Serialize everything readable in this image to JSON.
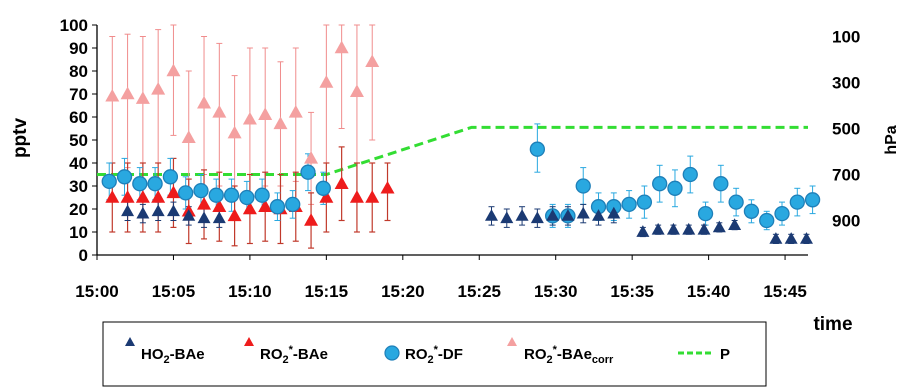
{
  "chart_data": {
    "type": "scatter",
    "xlabel": "time",
    "ylabel_left": "pptv",
    "ylabel_right": "hPa",
    "xlim": [
      0,
      46.5
    ],
    "x_ticks": [
      "15:00",
      "15:05",
      "15:10",
      "15:15",
      "15:20",
      "15:25",
      "15:30",
      "15:35",
      "15:40",
      "15:45"
    ],
    "y_left": {
      "lim": [
        0,
        100
      ],
      "ticks": [
        "0",
        "10",
        "20",
        "30",
        "40",
        "50",
        "60",
        "70",
        "80",
        "90",
        "100"
      ]
    },
    "y_right": {
      "lim": [
        1050,
        50
      ],
      "ticks": [
        "100",
        "300",
        "500",
        "700",
        "900"
      ],
      "inverted": true
    },
    "grid": false,
    "legend": {
      "position": "bottom",
      "entries": [
        {
          "key": "ho2",
          "main": "HO",
          "sub": "2",
          "rest": "-BAe"
        },
        {
          "key": "ro2bae",
          "main": "RO",
          "sub": "2",
          "sup": "*",
          "rest": "-BAe"
        },
        {
          "key": "ro2df",
          "main": "RO",
          "sub": "2",
          "sup": "*",
          "rest": "-DF"
        },
        {
          "key": "ro2corr",
          "main": "RO",
          "sub": "2",
          "sup": "*",
          "rest": "-BAe",
          "rest_sub": "corr"
        },
        {
          "key": "p",
          "main": "P"
        }
      ]
    },
    "colors": {
      "ho2": "#1b3a73",
      "ro2bae": "#ee1c1c",
      "ro2bae_err": "#c0392b",
      "ro2df": "#29a8e0",
      "ro2df_stroke": "#1e7fb8",
      "ro2corr": "#f4a0a0",
      "ro2corr_err": "#f08c8c",
      "pressure": "#33dd33"
    },
    "series": [
      {
        "key": "ro2corr",
        "marker": "triangle",
        "points": [
          {
            "x": 1.0,
            "y": 69,
            "lo": 40,
            "hi": 95
          },
          {
            "x": 2.0,
            "y": 70,
            "lo": 38,
            "hi": 96
          },
          {
            "x": 3.0,
            "y": 68,
            "lo": 33,
            "hi": 95
          },
          {
            "x": 4.0,
            "y": 72,
            "lo": 40,
            "hi": 98
          },
          {
            "x": 5.0,
            "y": 80,
            "lo": 52,
            "hi": 100
          },
          {
            "x": 6.0,
            "y": 51,
            "lo": 20,
            "hi": 80
          },
          {
            "x": 7.0,
            "y": 66,
            "lo": 35,
            "hi": 95
          },
          {
            "x": 8.0,
            "y": 62,
            "lo": 30,
            "hi": 92
          },
          {
            "x": 9.0,
            "y": 53,
            "lo": 28,
            "hi": 78
          },
          {
            "x": 10.0,
            "y": 59,
            "lo": 25,
            "hi": 90
          },
          {
            "x": 11.0,
            "y": 61,
            "lo": 30,
            "hi": 90
          },
          {
            "x": 12.0,
            "y": 57,
            "lo": 30,
            "hi": 84
          },
          {
            "x": 13.0,
            "y": 62,
            "lo": 32,
            "hi": 90
          },
          {
            "x": 14.0,
            "y": 42,
            "lo": 22,
            "hi": 62
          },
          {
            "x": 15.0,
            "y": 75,
            "lo": 40,
            "hi": 100
          },
          {
            "x": 16.0,
            "y": 90,
            "lo": 55,
            "hi": 100
          },
          {
            "x": 17.0,
            "y": 71,
            "lo": 40,
            "hi": 100
          },
          {
            "x": 18.0,
            "y": 84,
            "lo": 50,
            "hi": 100
          }
        ]
      },
      {
        "key": "ro2bae",
        "marker": "triangle",
        "points": [
          {
            "x": 1.0,
            "y": 25,
            "lo": 10,
            "hi": 40
          },
          {
            "x": 2.0,
            "y": 25,
            "lo": 10,
            "hi": 40
          },
          {
            "x": 3.0,
            "y": 25,
            "lo": 10,
            "hi": 40
          },
          {
            "x": 4.0,
            "y": 25,
            "lo": 10,
            "hi": 40
          },
          {
            "x": 5.0,
            "y": 27,
            "lo": 12,
            "hi": 42
          },
          {
            "x": 6.0,
            "y": 19,
            "lo": 5,
            "hi": 33
          },
          {
            "x": 7.0,
            "y": 22,
            "lo": 7,
            "hi": 37
          },
          {
            "x": 8.0,
            "y": 21,
            "lo": 6,
            "hi": 36
          },
          {
            "x": 9.0,
            "y": 17,
            "lo": 4,
            "hi": 30
          },
          {
            "x": 10.0,
            "y": 20,
            "lo": 5,
            "hi": 35
          },
          {
            "x": 11.0,
            "y": 21,
            "lo": 6,
            "hi": 36
          },
          {
            "x": 12.0,
            "y": 20,
            "lo": 5,
            "hi": 35
          },
          {
            "x": 13.0,
            "y": 21,
            "lo": 6,
            "hi": 36
          },
          {
            "x": 14.0,
            "y": 15,
            "lo": 3,
            "hi": 27
          },
          {
            "x": 15.0,
            "y": 25,
            "lo": 10,
            "hi": 40
          },
          {
            "x": 16.0,
            "y": 31,
            "lo": 15,
            "hi": 47
          },
          {
            "x": 17.0,
            "y": 25,
            "lo": 10,
            "hi": 40
          },
          {
            "x": 18.0,
            "y": 25,
            "lo": 10,
            "hi": 40
          },
          {
            "x": 19.0,
            "y": 29,
            "lo": 15,
            "hi": 40
          }
        ]
      },
      {
        "key": "ro2df",
        "marker": "circle",
        "points": [
          {
            "x": 0.8,
            "y": 32,
            "lo": 24,
            "hi": 40
          },
          {
            "x": 1.8,
            "y": 34,
            "lo": 26,
            "hi": 42
          },
          {
            "x": 2.8,
            "y": 31,
            "lo": 24,
            "hi": 38
          },
          {
            "x": 3.8,
            "y": 31,
            "lo": 24,
            "hi": 38
          },
          {
            "x": 4.8,
            "y": 34,
            "lo": 26,
            "hi": 42
          },
          {
            "x": 5.8,
            "y": 27,
            "lo": 20,
            "hi": 34
          },
          {
            "x": 6.8,
            "y": 28,
            "lo": 20,
            "hi": 35
          },
          {
            "x": 7.8,
            "y": 26,
            "lo": 19,
            "hi": 33
          },
          {
            "x": 8.8,
            "y": 26,
            "lo": 19,
            "hi": 33
          },
          {
            "x": 9.8,
            "y": 25,
            "lo": 18,
            "hi": 32
          },
          {
            "x": 10.8,
            "y": 26,
            "lo": 19,
            "hi": 33
          },
          {
            "x": 11.8,
            "y": 21,
            "lo": 15,
            "hi": 27
          },
          {
            "x": 12.8,
            "y": 22,
            "lo": 16,
            "hi": 28
          },
          {
            "x": 13.8,
            "y": 36,
            "lo": 28,
            "hi": 44
          },
          {
            "x": 14.8,
            "y": 29,
            "lo": 22,
            "hi": 36
          },
          {
            "x": 28.8,
            "y": 46,
            "lo": 36,
            "hi": 57
          },
          {
            "x": 29.8,
            "y": 17,
            "lo": 12,
            "hi": 22
          },
          {
            "x": 30.8,
            "y": 17,
            "lo": 12,
            "hi": 22
          },
          {
            "x": 31.8,
            "y": 30,
            "lo": 22,
            "hi": 38
          },
          {
            "x": 32.8,
            "y": 21,
            "lo": 15,
            "hi": 27
          },
          {
            "x": 33.8,
            "y": 21,
            "lo": 15,
            "hi": 27
          },
          {
            "x": 34.8,
            "y": 22,
            "lo": 16,
            "hi": 28
          },
          {
            "x": 35.8,
            "y": 23,
            "lo": 16,
            "hi": 30
          },
          {
            "x": 36.8,
            "y": 31,
            "lo": 23,
            "hi": 39
          },
          {
            "x": 37.8,
            "y": 29,
            "lo": 21,
            "hi": 37
          },
          {
            "x": 38.8,
            "y": 35,
            "lo": 27,
            "hi": 43
          },
          {
            "x": 39.8,
            "y": 18,
            "lo": 13,
            "hi": 23
          },
          {
            "x": 40.8,
            "y": 31,
            "lo": 23,
            "hi": 39
          },
          {
            "x": 41.8,
            "y": 23,
            "lo": 17,
            "hi": 29
          },
          {
            "x": 42.8,
            "y": 19,
            "lo": 14,
            "hi": 24
          },
          {
            "x": 43.8,
            "y": 15,
            "lo": 11,
            "hi": 19
          },
          {
            "x": 44.8,
            "y": 18,
            "lo": 13,
            "hi": 23
          },
          {
            "x": 45.8,
            "y": 23,
            "lo": 17,
            "hi": 29
          },
          {
            "x": 46.8,
            "y": 24,
            "lo": 18,
            "hi": 30
          }
        ]
      },
      {
        "key": "ho2",
        "marker": "triangle",
        "points": [
          {
            "x": 2.0,
            "y": 19,
            "lo": 15,
            "hi": 23
          },
          {
            "x": 3.0,
            "y": 18,
            "lo": 14,
            "hi": 22
          },
          {
            "x": 4.0,
            "y": 19,
            "lo": 15,
            "hi": 23
          },
          {
            "x": 5.0,
            "y": 19,
            "lo": 15,
            "hi": 23
          },
          {
            "x": 6.0,
            "y": 17,
            "lo": 13,
            "hi": 21
          },
          {
            "x": 7.0,
            "y": 16,
            "lo": 12,
            "hi": 20
          },
          {
            "x": 8.0,
            "y": 16,
            "lo": 12,
            "hi": 20
          },
          {
            "x": 25.8,
            "y": 17,
            "lo": 13,
            "hi": 21
          },
          {
            "x": 26.8,
            "y": 16,
            "lo": 12,
            "hi": 20
          },
          {
            "x": 27.8,
            "y": 17,
            "lo": 13,
            "hi": 21
          },
          {
            "x": 28.8,
            "y": 16,
            "lo": 12,
            "hi": 20
          },
          {
            "x": 29.8,
            "y": 17,
            "lo": 13,
            "hi": 21
          },
          {
            "x": 30.8,
            "y": 17,
            "lo": 13,
            "hi": 21
          },
          {
            "x": 31.8,
            "y": 18,
            "lo": 14,
            "hi": 22
          },
          {
            "x": 32.8,
            "y": 17,
            "lo": 13,
            "hi": 21
          },
          {
            "x": 33.8,
            "y": 18,
            "lo": 14,
            "hi": 22
          },
          {
            "x": 35.7,
            "y": 10,
            "lo": 8,
            "hi": 12
          },
          {
            "x": 36.7,
            "y": 11,
            "lo": 9,
            "hi": 13
          },
          {
            "x": 37.7,
            "y": 11,
            "lo": 9,
            "hi": 13
          },
          {
            "x": 38.7,
            "y": 11,
            "lo": 9,
            "hi": 13
          },
          {
            "x": 39.7,
            "y": 11,
            "lo": 9,
            "hi": 13
          },
          {
            "x": 40.7,
            "y": 12,
            "lo": 10,
            "hi": 14
          },
          {
            "x": 41.7,
            "y": 13,
            "lo": 11,
            "hi": 15
          },
          {
            "x": 44.4,
            "y": 7,
            "lo": 5,
            "hi": 9
          },
          {
            "x": 45.4,
            "y": 7,
            "lo": 5,
            "hi": 9
          },
          {
            "x": 46.4,
            "y": 7,
            "lo": 5,
            "hi": 9
          }
        ]
      }
    ],
    "pressure_line": {
      "key": "p",
      "points": [
        [
          0,
          700
        ],
        [
          15,
          700
        ],
        [
          24.5,
          495
        ],
        [
          46.5,
          495
        ]
      ]
    }
  }
}
